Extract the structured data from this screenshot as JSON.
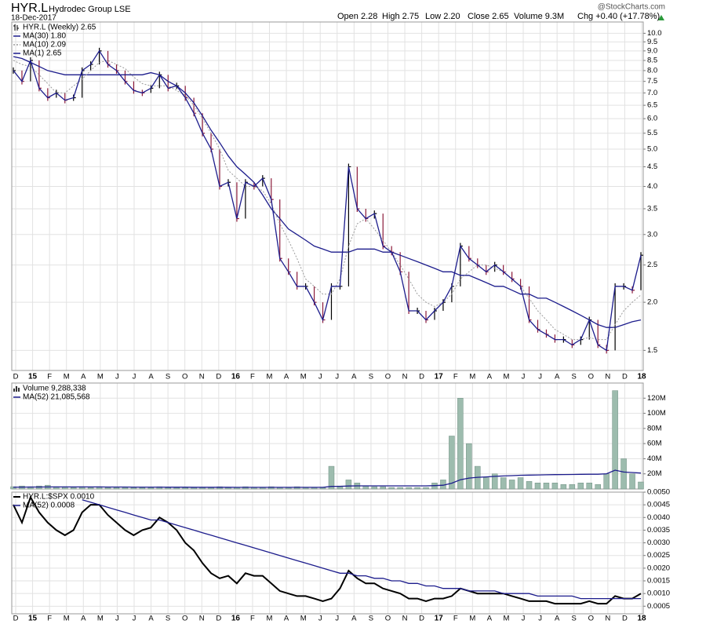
{
  "chart_data": [
    {
      "type": "line",
      "symbol": "HYR.L",
      "name": "Hydrodec Group LSE",
      "date": "18-Dec-2017",
      "quote": [
        "Open 2.28",
        "High 2.75",
        "Low 2.20",
        "Close 2.65",
        "Volume 9.3M",
        "Chg +0.40 (+17.78%)"
      ],
      "watermark": "@StockCharts.com",
      "log_scale": true,
      "grid": true,
      "ylim": [
        1.33,
        10.7
      ],
      "yticks": [
        1.5,
        {
          "value": 2,
          "label": "2.0"
        },
        2.5,
        {
          "value": 3,
          "label": "3.0"
        },
        3.5,
        {
          "value": 4,
          "label": "4.0"
        },
        4.5,
        {
          "value": 5,
          "label": "5.0"
        },
        5.5,
        {
          "value": 6,
          "label": "6.0"
        },
        6.5,
        {
          "value": 7,
          "label": "7.0"
        },
        7.5,
        {
          "value": 8,
          "label": "8.0"
        },
        8.5,
        {
          "value": 9,
          "label": "9.0"
        },
        9.5,
        {
          "value": 10,
          "label": "10.0"
        }
      ],
      "x_tick_labels": [
        "D",
        "15",
        "F",
        "M",
        "A",
        "M",
        "J",
        "J",
        "A",
        "S",
        "O",
        "N",
        "D",
        "16",
        "F",
        "M",
        "A",
        "M",
        "J",
        "J",
        "A",
        "S",
        "O",
        "N",
        "D",
        "17",
        "F",
        "M",
        "A",
        "M",
        "J",
        "J",
        "A",
        "S",
        "O",
        "N",
        "D",
        "18"
      ],
      "series": [
        {
          "name": "HYR.L (Weekly) 2.65",
          "style": "bars",
          "color": "#000000",
          "down_color": "#8b1a3a",
          "values": [
            8.0,
            7.5,
            8.5,
            7.2,
            6.8,
            7.0,
            6.7,
            6.8,
            8.0,
            8.3,
            9.0,
            8.3,
            8.0,
            7.5,
            7.1,
            7.0,
            7.2,
            7.8,
            7.2,
            7.3,
            6.8,
            6.2,
            5.5,
            5.0,
            4.0,
            4.1,
            3.3,
            4.1,
            4.0,
            4.2,
            3.7,
            2.6,
            2.4,
            2.2,
            2.2,
            2.0,
            1.8,
            2.2,
            2.2,
            4.5,
            3.5,
            3.3,
            3.4,
            2.8,
            2.7,
            2.4,
            1.9,
            1.9,
            1.8,
            1.9,
            2.0,
            2.2,
            2.8,
            2.6,
            2.5,
            2.4,
            2.5,
            2.4,
            2.3,
            2.2,
            1.8,
            1.7,
            1.65,
            1.6,
            1.6,
            1.55,
            1.6,
            1.8,
            1.55,
            1.5,
            2.2,
            2.2,
            2.15,
            2.65
          ]
        },
        {
          "name": "MA(30) 1.80",
          "style": "line",
          "color": "#1c1c8c",
          "values": [
            8.7,
            8.6,
            8.4,
            8.2,
            8.0,
            7.9,
            7.8,
            7.8,
            7.8,
            7.8,
            7.8,
            7.8,
            7.8,
            7.8,
            7.8,
            7.8,
            7.9,
            7.8,
            7.5,
            7.3,
            7.0,
            6.6,
            6.1,
            5.6,
            5.2,
            4.8,
            4.5,
            4.3,
            4.1,
            3.8,
            3.5,
            3.3,
            3.1,
            3.0,
            2.9,
            2.8,
            2.75,
            2.7,
            2.7,
            2.7,
            2.75,
            2.75,
            2.75,
            2.7,
            2.7,
            2.65,
            2.6,
            2.55,
            2.5,
            2.45,
            2.4,
            2.4,
            2.35,
            2.35,
            2.3,
            2.25,
            2.2,
            2.2,
            2.15,
            2.1,
            2.1,
            2.05,
            2.05,
            2.0,
            1.95,
            1.9,
            1.85,
            1.8,
            1.75,
            1.72,
            1.72,
            1.75,
            1.78,
            1.8
          ]
        },
        {
          "name": "MA(10) 2.09",
          "style": "dotted",
          "color": "#9a9a9a",
          "values": [
            8.5,
            8.3,
            8.2,
            7.8,
            7.4,
            7.0,
            7.0,
            7.3,
            7.6,
            8.0,
            8.4,
            8.5,
            8.3,
            8.1,
            7.7,
            7.4,
            7.3,
            7.3,
            7.3,
            7.1,
            6.9,
            6.5,
            6.0,
            5.5,
            5.0,
            4.4,
            4.2,
            4.0,
            4.0,
            3.9,
            3.6,
            3.2,
            2.9,
            2.6,
            2.3,
            2.2,
            2.1,
            2.1,
            2.3,
            2.8,
            3.2,
            3.3,
            3.1,
            2.9,
            2.7,
            2.5,
            2.3,
            2.1,
            2.0,
            1.95,
            2.0,
            2.1,
            2.3,
            2.4,
            2.5,
            2.5,
            2.45,
            2.4,
            2.3,
            2.2,
            2.05,
            1.9,
            1.8,
            1.7,
            1.65,
            1.6,
            1.6,
            1.62,
            1.6,
            1.6,
            1.75,
            1.9,
            2.0,
            2.09
          ]
        },
        {
          "name": "MA(1) 2.65",
          "style": "line",
          "color": "#1c1c8c",
          "values": [
            8.0,
            7.5,
            8.5,
            7.2,
            6.8,
            7.0,
            6.7,
            6.8,
            8.0,
            8.3,
            9.0,
            8.3,
            8.0,
            7.5,
            7.1,
            7.0,
            7.2,
            7.8,
            7.2,
            7.3,
            6.8,
            6.2,
            5.5,
            5.0,
            4.0,
            4.1,
            3.3,
            4.1,
            4.0,
            4.2,
            3.7,
            2.6,
            2.4,
            2.2,
            2.2,
            2.0,
            1.8,
            2.2,
            2.2,
            4.5,
            3.5,
            3.3,
            3.4,
            2.8,
            2.7,
            2.4,
            1.9,
            1.9,
            1.8,
            1.9,
            2.0,
            2.2,
            2.8,
            2.6,
            2.5,
            2.4,
            2.5,
            2.4,
            2.3,
            2.2,
            1.8,
            1.7,
            1.65,
            1.6,
            1.6,
            1.55,
            1.6,
            1.8,
            1.55,
            1.5,
            2.2,
            2.2,
            2.15,
            2.65
          ]
        }
      ]
    },
    {
      "type": "bar",
      "grid": true,
      "ylim": [
        0,
        140000000
      ],
      "yticks": [
        {
          "value": 20000000,
          "label": "20M"
        },
        {
          "value": 40000000,
          "label": "40M"
        },
        {
          "value": 60000000,
          "label": "60M"
        },
        {
          "value": 80000000,
          "label": "80M"
        },
        {
          "value": 100000000,
          "label": "100M"
        },
        {
          "value": 120000000,
          "label": "120M"
        }
      ],
      "series": [
        {
          "name": "Volume 9,288,338",
          "style": "bars",
          "color": "#9dbcae",
          "values": [
            3000000,
            4000000,
            3000000,
            4000000,
            5000000,
            3000000,
            3000000,
            2000000,
            3000000,
            2000000,
            3000000,
            2000000,
            2000000,
            2000000,
            2000000,
            2000000,
            2000000,
            3000000,
            2000000,
            2000000,
            2000000,
            2000000,
            2000000,
            2000000,
            3000000,
            2000000,
            2000000,
            3000000,
            2000000,
            2000000,
            3000000,
            2000000,
            2000000,
            3000000,
            2000000,
            2000000,
            2000000,
            30000000,
            4000000,
            12000000,
            8000000,
            4000000,
            3000000,
            3000000,
            2000000,
            2000000,
            2000000,
            2000000,
            2000000,
            8000000,
            12000000,
            70000000,
            120000000,
            60000000,
            30000000,
            15000000,
            20000000,
            15000000,
            12000000,
            15000000,
            10000000,
            8000000,
            8000000,
            8000000,
            6000000,
            6000000,
            8000000,
            8000000,
            6000000,
            20000000,
            130000000,
            40000000,
            20000000,
            9288338
          ]
        },
        {
          "name": "MA(52) 21,085,568",
          "style": "line",
          "color": "#1c1c8c",
          "values": [
            2500000,
            2500000,
            2600000,
            2600000,
            2700000,
            2700000,
            2700000,
            2700000,
            2700000,
            2700000,
            2700000,
            2600000,
            2600000,
            2600000,
            2500000,
            2500000,
            2500000,
            2500000,
            2400000,
            2400000,
            2400000,
            2300000,
            2300000,
            2300000,
            2300000,
            2300000,
            2200000,
            2200000,
            2200000,
            2200000,
            2200000,
            2200000,
            2200000,
            2200000,
            2200000,
            2200000,
            2200000,
            3400000,
            3500000,
            3900000,
            4100000,
            4200000,
            4200000,
            4200000,
            4200000,
            4200000,
            4200000,
            4200000,
            4200000,
            4500000,
            5000000,
            7700000,
            12200000,
            14400000,
            15500000,
            16000000,
            16700000,
            17200000,
            17600000,
            18100000,
            18400000,
            18600000,
            18800000,
            19000000,
            19100000,
            19200000,
            19400000,
            19500000,
            19500000,
            20100000,
            24900000,
            22400000,
            21800000,
            21085568
          ]
        }
      ]
    },
    {
      "type": "line",
      "grid": true,
      "ylim": [
        0.0002,
        0.005
      ],
      "yticks": [
        0.0005,
        {
          "value": 0.001,
          "label": "0.0010"
        },
        0.0015,
        {
          "value": 0.002,
          "label": "0.0020"
        },
        0.0025,
        {
          "value": 0.003,
          "label": "0.0030"
        },
        0.0035,
        {
          "value": 0.004,
          "label": "0.0040"
        },
        0.0045,
        {
          "value": 0.005,
          "label": "0.0050"
        }
      ],
      "x_tick_labels": [
        "D",
        "15",
        "F",
        "M",
        "A",
        "M",
        "J",
        "J",
        "A",
        "S",
        "O",
        "N",
        "D",
        "16",
        "F",
        "M",
        "A",
        "M",
        "J",
        "J",
        "A",
        "S",
        "O",
        "N",
        "D",
        "17",
        "F",
        "M",
        "A",
        "M",
        "J",
        "J",
        "A",
        "S",
        "O",
        "N",
        "D",
        "18"
      ],
      "series": [
        {
          "name": "HYR.L:$SPX 0.0010",
          "style": "thick",
          "color": "#000000",
          "values": [
            0.0045,
            0.0038,
            0.0048,
            0.0042,
            0.0038,
            0.0035,
            0.0033,
            0.0035,
            0.0042,
            0.0045,
            0.0045,
            0.0041,
            0.0038,
            0.0035,
            0.0033,
            0.0035,
            0.0036,
            0.004,
            0.0038,
            0.0035,
            0.003,
            0.0027,
            0.0022,
            0.0018,
            0.0016,
            0.0017,
            0.0014,
            0.0018,
            0.0017,
            0.0017,
            0.0014,
            0.0011,
            0.001,
            0.0009,
            0.0009,
            0.0008,
            0.0007,
            0.0008,
            0.0012,
            0.0019,
            0.0016,
            0.0014,
            0.0014,
            0.0012,
            0.0011,
            0.001,
            0.0008,
            0.0008,
            0.0007,
            0.0008,
            0.0008,
            0.0009,
            0.0012,
            0.0011,
            0.001,
            0.001,
            0.001,
            0.001,
            0.0009,
            0.0008,
            0.0007,
            0.0007,
            0.0007,
            0.0006,
            0.0006,
            0.0006,
            0.0006,
            0.0007,
            0.0006,
            0.0006,
            0.0009,
            0.0008,
            0.0008,
            0.001
          ]
        },
        {
          "name": "MA(52) 0.0008",
          "style": "line",
          "color": "#1c1c8c",
          "values": [
            null,
            null,
            null,
            null,
            null,
            null,
            null,
            null,
            0.0047,
            0.0046,
            0.0045,
            0.0044,
            0.0043,
            0.0042,
            0.0041,
            0.004,
            0.0039,
            0.0039,
            0.0038,
            0.0037,
            0.0036,
            0.0035,
            0.0034,
            0.0033,
            0.0032,
            0.0031,
            0.003,
            0.0029,
            0.0028,
            0.0027,
            0.0026,
            0.0025,
            0.0024,
            0.0023,
            0.0022,
            0.0021,
            0.002,
            0.0019,
            0.0018,
            0.0018,
            0.0017,
            0.0017,
            0.0016,
            0.0016,
            0.0015,
            0.0015,
            0.0014,
            0.0014,
            0.0013,
            0.0013,
            0.0012,
            0.0012,
            0.0012,
            0.0011,
            0.0011,
            0.0011,
            0.0011,
            0.001,
            0.001,
            0.001,
            0.001,
            0.0009,
            0.0009,
            0.0009,
            0.0009,
            0.0009,
            0.0008,
            0.0008,
            0.0008,
            0.0008,
            0.0008,
            0.0008,
            0.0008,
            0.0008
          ]
        }
      ]
    }
  ]
}
